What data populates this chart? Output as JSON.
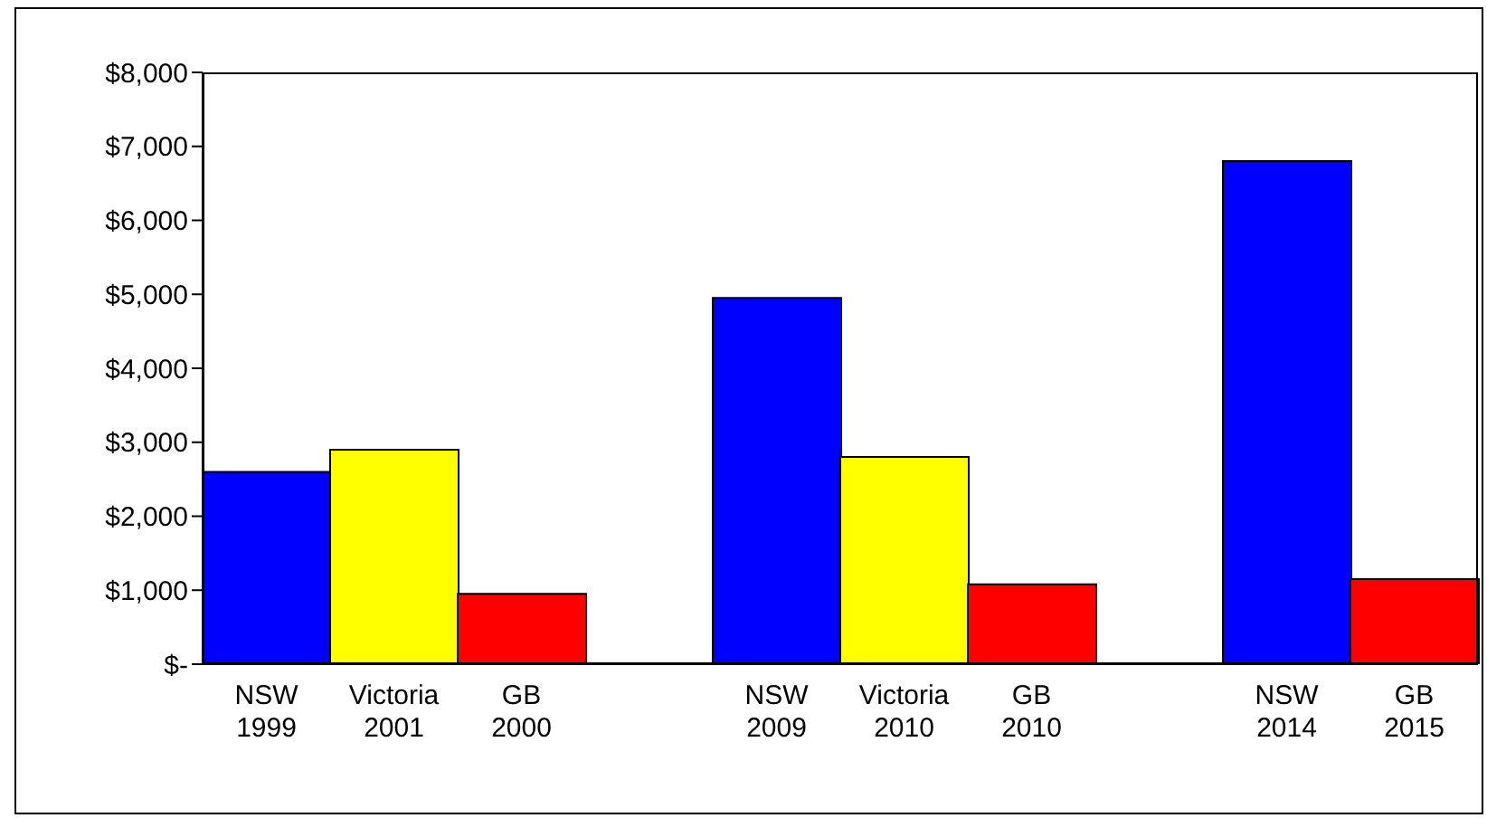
{
  "chart_data": {
    "type": "bar",
    "categories": [
      "NSW\n1999",
      "Victoria\n2001",
      "GB\n2000",
      null,
      "NSW\n2009",
      "Victoria\n2010",
      "GB\n2010",
      null,
      "NSW\n2014",
      "GB\n2015"
    ],
    "values": [
      2600,
      2900,
      950,
      null,
      4950,
      2800,
      1080,
      null,
      6800,
      1150
    ],
    "colors": [
      "#0000ff",
      "#ffff00",
      "#ff0000",
      null,
      "#0000ff",
      "#ffff00",
      "#ff0000",
      null,
      "#0000ff",
      "#ff0000"
    ],
    "ylim": [
      0,
      8000
    ],
    "yticks": [
      {
        "value": 0,
        "label": "$-"
      },
      {
        "value": 1000,
        "label": "$1,000"
      },
      {
        "value": 2000,
        "label": "$2,000"
      },
      {
        "value": 3000,
        "label": "$3,000"
      },
      {
        "value": 4000,
        "label": "$4,000"
      },
      {
        "value": 5000,
        "label": "$5,000"
      },
      {
        "value": 6000,
        "label": "$6,000"
      },
      {
        "value": 7000,
        "label": "$7,000"
      },
      {
        "value": 8000,
        "label": "$8,000"
      }
    ],
    "grid": false
  }
}
